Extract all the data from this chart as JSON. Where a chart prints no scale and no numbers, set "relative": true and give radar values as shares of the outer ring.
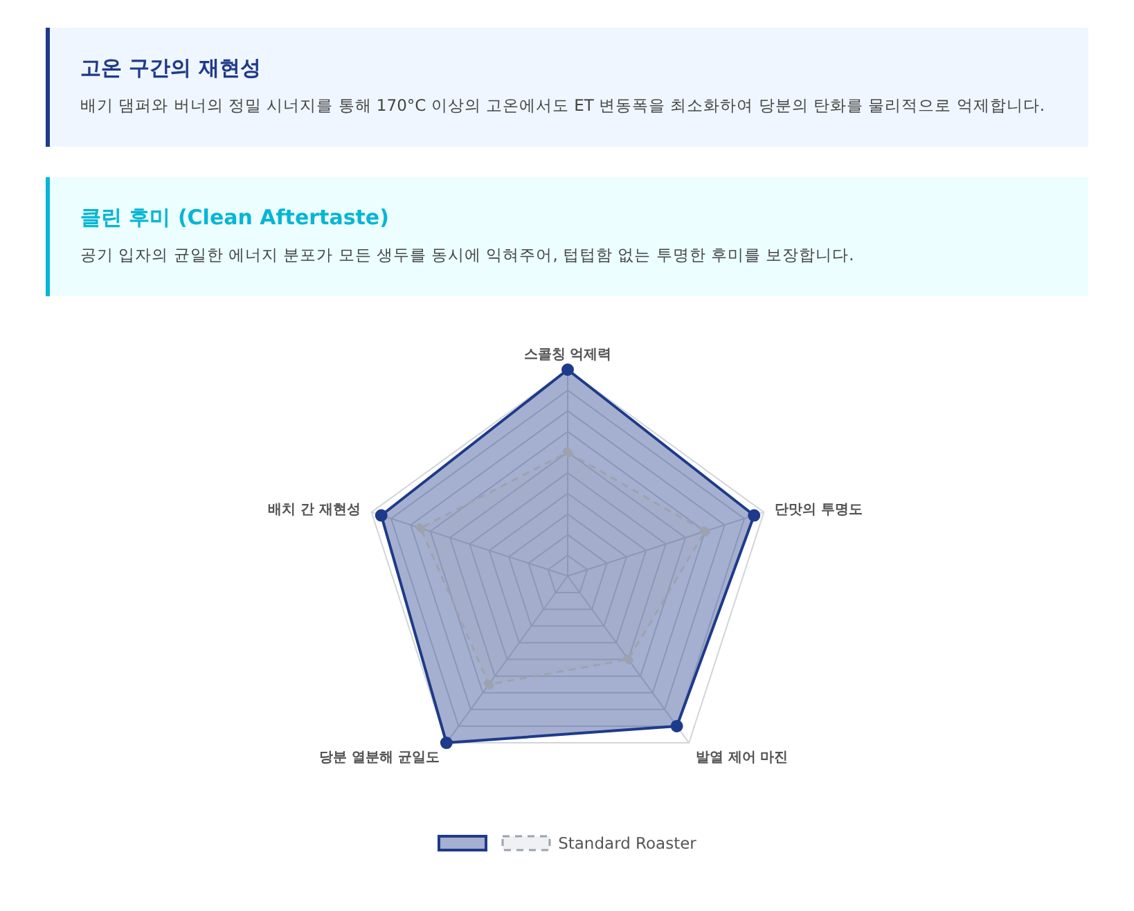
{
  "chart_data": {
    "type": "radar",
    "relative": true,
    "annotations": [
      "고온 구간의 재현성",
      "배기 댐퍼와 버너의 정밀 시너지를 통해 170°C 이상의 고온에서도 ET 변동폭을 최소화하여 당분의 탄화를 물리적으로 억제합니다.",
      "클린 후미 (Clean Aftertaste)",
      "공기 입자의 균일한 에너지 분포가 모든 생두를 동시에 익혀주어, 텁텁함 없는 투명한 후미를 보장합니다."
    ],
    "categories": [
      "스콜칭 억제력",
      "단맛의 투명도",
      "발열 제어 마진",
      "당분 열분해 균일도",
      "배치 간 재현성"
    ],
    "series": [
      {
        "color": "#1e3a8a",
        "line_style": "solid",
        "values": [
          1.0,
          0.95,
          0.9,
          1.0,
          0.95
        ]
      },
      {
        "name": "Standard Roaster",
        "color": "#9ca3af",
        "line_style": "dashed",
        "values": [
          0.6,
          0.7,
          0.5,
          0.65,
          0.75
        ]
      }
    ],
    "grid": true,
    "legend": "bottom",
    "marker": "circle"
  }
}
